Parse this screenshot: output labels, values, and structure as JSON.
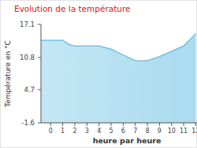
{
  "chart_data": {
    "type": "area",
    "title": "Evolution de la température",
    "x_label": "heure par heure",
    "y_label": "Température en °C",
    "x": [
      -0.8,
      0,
      1,
      1.5,
      2,
      3,
      4,
      5,
      6,
      7,
      8,
      9,
      10,
      11,
      12
    ],
    "values": [
      14.1,
      14.1,
      14.1,
      13.3,
      13.0,
      13.0,
      13.0,
      12.4,
      11.3,
      10.2,
      10.2,
      11.0,
      12.0,
      13.0,
      15.4
    ],
    "color": "#6ab8e0",
    "xlim": [
      -0.8,
      12.1
    ],
    "ylim": [
      -1.6,
      17.1
    ],
    "xticks": [
      0,
      1,
      2,
      3,
      4,
      5,
      6,
      7,
      8,
      9,
      10,
      11,
      12
    ],
    "yticks": [
      -1.6,
      4.7,
      10.8,
      17.1
    ],
    "grid": false
  }
}
